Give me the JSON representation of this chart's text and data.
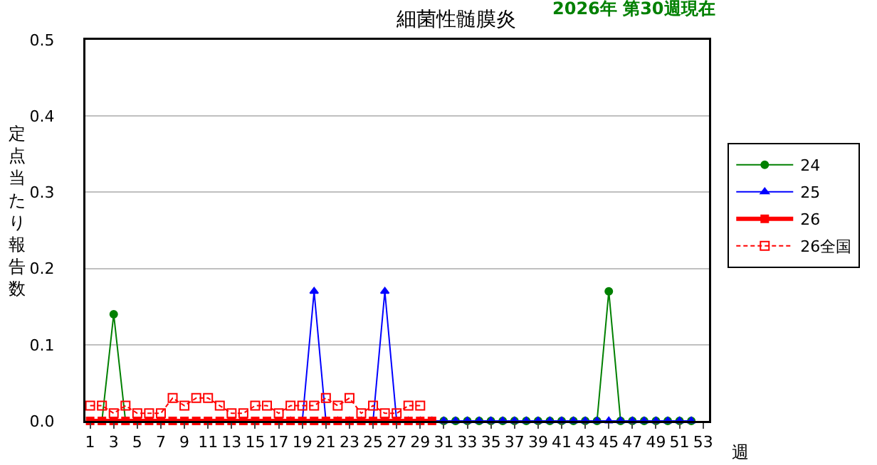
{
  "chart_data": {
    "type": "line",
    "title": "細菌性髄膜炎",
    "subtitle": "2026年 第30週現在",
    "xlabel": "週",
    "ylabel": "定点当たり報告数",
    "xlim": [
      0.6,
      53.5
    ],
    "xticks": [
      1,
      3,
      5,
      7,
      9,
      11,
      13,
      15,
      17,
      19,
      21,
      23,
      25,
      27,
      29,
      31,
      33,
      35,
      37,
      39,
      41,
      43,
      45,
      47,
      49,
      51,
      53
    ],
    "ylim": [
      0,
      0.5
    ],
    "yticks": [
      {
        "value": 0,
        "label": "0.0"
      },
      0.1,
      0.2,
      0.3,
      0.4,
      0.5
    ],
    "grid": "y",
    "legend": "right",
    "series": [
      {
        "name": "24",
        "color": "#008000",
        "marker": "circle",
        "line_style": "solid",
        "x": [
          1,
          2,
          3,
          4,
          5,
          6,
          7,
          8,
          9,
          10,
          11,
          12,
          13,
          14,
          15,
          16,
          17,
          18,
          19,
          20,
          21,
          22,
          23,
          24,
          25,
          26,
          27,
          28,
          29,
          30,
          31,
          32,
          33,
          34,
          35,
          36,
          37,
          38,
          39,
          40,
          41,
          42,
          43,
          44,
          45,
          46,
          47,
          48,
          49,
          50,
          51,
          52
        ],
        "values": [
          0,
          0,
          0.14,
          0,
          0,
          0,
          0,
          0,
          0,
          0,
          0,
          0,
          0,
          0,
          0,
          0,
          0,
          0,
          0,
          0,
          0,
          0,
          0,
          0,
          0,
          0,
          0,
          0,
          0,
          0,
          0,
          0,
          0,
          0,
          0,
          0,
          0,
          0,
          0,
          0,
          0,
          0,
          0,
          0,
          0.17,
          0,
          0,
          0,
          0,
          0,
          0,
          0
        ]
      },
      {
        "name": "25",
        "color": "#0000ff",
        "marker": "triangle",
        "line_style": "solid",
        "x": [
          18,
          19,
          20,
          21,
          22,
          23,
          24,
          25,
          26,
          27,
          28,
          29,
          30,
          31,
          32,
          33,
          34,
          35,
          36,
          37,
          38,
          39,
          40,
          41,
          42,
          43,
          44,
          45,
          46,
          47,
          48,
          49,
          50,
          51,
          52
        ],
        "values": [
          0,
          0,
          0.17,
          0,
          0,
          0,
          0,
          0,
          0.17,
          0,
          0,
          0,
          0,
          0,
          0,
          0,
          0,
          0,
          0,
          0,
          0,
          0,
          0,
          0,
          0,
          0,
          0,
          0,
          0,
          0,
          0,
          0,
          0,
          0,
          0
        ]
      },
      {
        "name": "26",
        "color": "#ff0000",
        "marker": "square",
        "line_style": "solid",
        "x": [
          1,
          2,
          3,
          4,
          5,
          6,
          7,
          8,
          9,
          10,
          11,
          12,
          13,
          14,
          15,
          16,
          17,
          18,
          19,
          20,
          21,
          22,
          23,
          24,
          25,
          26,
          27,
          28,
          29,
          30
        ],
        "values": [
          0,
          0,
          0,
          0,
          0,
          0,
          0,
          0,
          0,
          0,
          0,
          0,
          0,
          0,
          0,
          0,
          0,
          0,
          0,
          0,
          0,
          0,
          0,
          0,
          0,
          0,
          0,
          0,
          0,
          0
        ]
      },
      {
        "name": "26全国",
        "color": "#ff0000",
        "marker": "square-open",
        "line_style": "dashed",
        "x": [
          1,
          2,
          3,
          4,
          5,
          6,
          7,
          8,
          9,
          10,
          11,
          12,
          13,
          14,
          15,
          16,
          17,
          18,
          19,
          20,
          21,
          22,
          23,
          24,
          25,
          26,
          27,
          28,
          29
        ],
        "values": [
          0.02,
          0.02,
          0.01,
          0.02,
          0.01,
          0.01,
          0.01,
          0.03,
          0.02,
          0.03,
          0.03,
          0.02,
          0.01,
          0.01,
          0.02,
          0.02,
          0.01,
          0.02,
          0.02,
          0.02,
          0.03,
          0.02,
          0.03,
          0.01,
          0.02,
          0.01,
          0.01,
          0.02,
          0.02
        ]
      }
    ]
  }
}
